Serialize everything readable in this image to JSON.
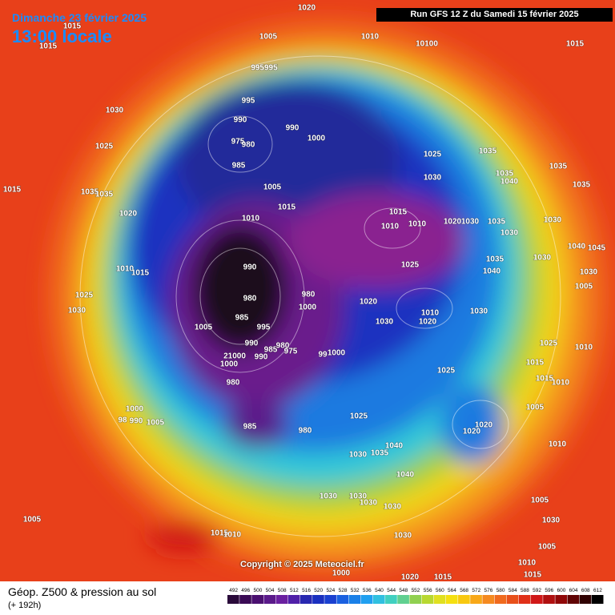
{
  "header": {
    "date": "Dimanche 23 février 2025",
    "time": "13:00 locale",
    "run": "Run GFS 12 Z du Samedi 15 février 2025"
  },
  "isobar_labels": [
    "1020",
    "1015",
    "1015",
    "1005",
    "1010",
    "10100",
    "1015",
    "995995",
    "995",
    "990",
    "990",
    "975",
    "980",
    "1000",
    "985",
    "1030",
    "1025",
    "1025",
    "1035",
    "1035",
    "1035",
    "1040",
    "1035",
    "1015",
    "1035",
    "1035",
    "1005",
    "1030",
    "1020",
    "1015",
    "1010",
    "1015",
    "1010",
    "1010",
    "1020",
    "1030",
    "1035",
    "1030",
    "1030",
    "1045",
    "1040",
    "990",
    "1010",
    "1015",
    "1025",
    "1035",
    "1030",
    "1040",
    "1005",
    "1030",
    "1025",
    "980",
    "980",
    "1020",
    "1010",
    "1020",
    "1030",
    "1030",
    "985",
    "1005",
    "995",
    "1030",
    "990",
    "985",
    "980",
    "975",
    "99",
    "1000",
    "1025",
    "1010",
    "21000",
    "990",
    "1000",
    "1015",
    "1025",
    "1015",
    "1010",
    "980",
    "1000",
    "1005",
    "98",
    "990",
    "1005",
    "1025",
    "985",
    "1020",
    "1020",
    "980",
    "1040",
    "1030",
    "1035",
    "1040",
    "1010",
    "1030",
    "1030",
    "1030",
    "1030",
    "1005",
    "1005",
    "1015",
    "1010",
    "1030",
    "1030",
    "1005",
    "1010",
    "1000",
    "1020",
    "1015",
    "1015",
    "1000"
  ],
  "copyright": "Copyright © 2025 Meteociel.fr",
  "footer": {
    "title": "Géop. Z500 & pression au sol",
    "lead": "(+ 192h)"
  },
  "legend": {
    "scale": [
      492,
      496,
      500,
      504,
      508,
      512,
      516,
      520,
      524,
      528,
      532,
      536,
      540,
      544,
      548,
      552,
      556,
      560,
      564,
      568,
      572,
      576,
      580,
      584,
      588,
      592,
      596,
      600,
      604,
      608,
      612
    ]
  }
}
